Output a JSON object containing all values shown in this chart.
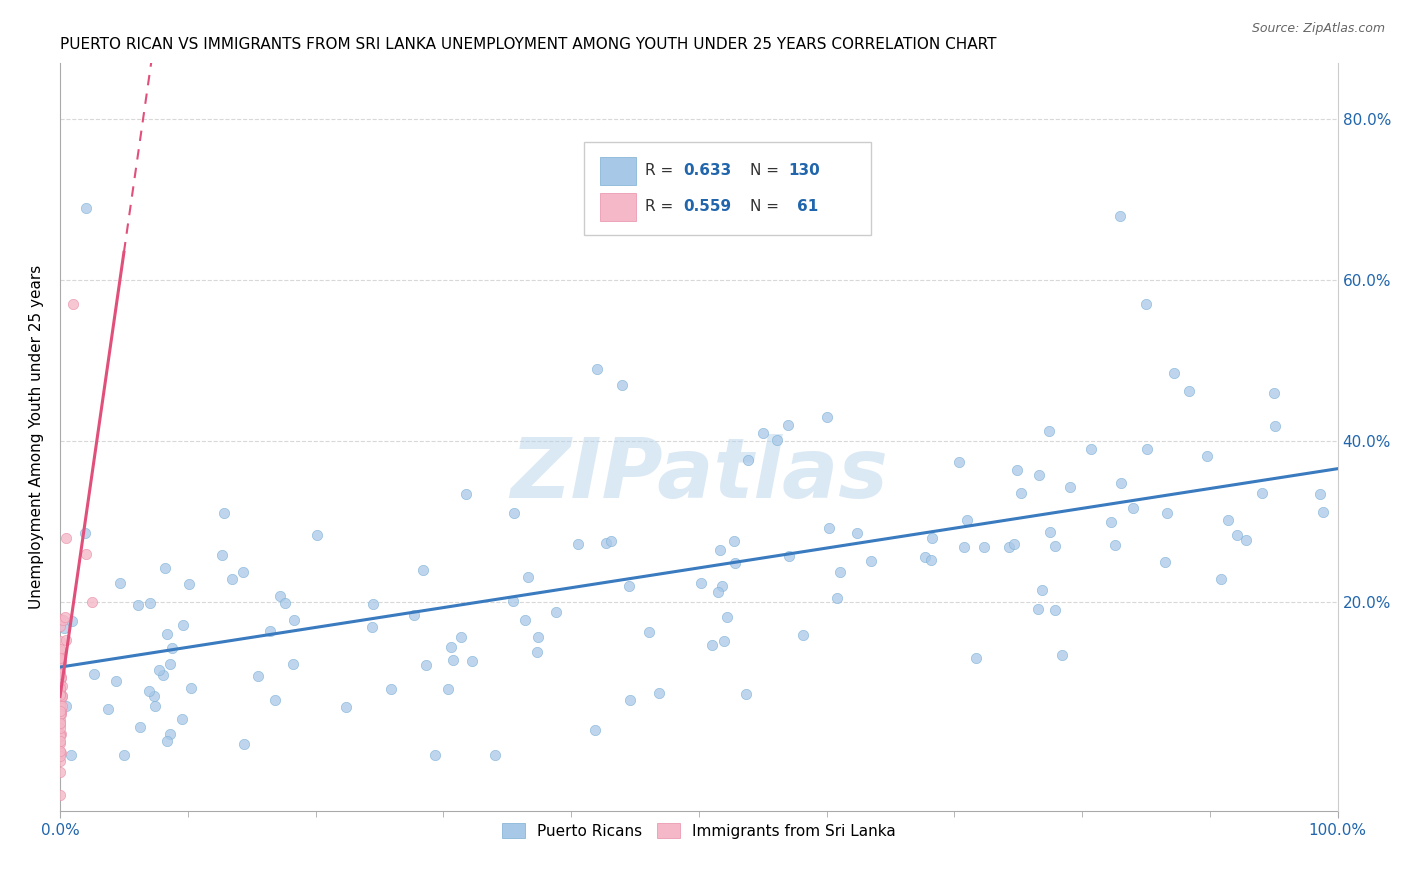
{
  "title": "PUERTO RICAN VS IMMIGRANTS FROM SRI LANKA UNEMPLOYMENT AMONG YOUTH UNDER 25 YEARS CORRELATION CHART",
  "source": "Source: ZipAtlas.com",
  "ylabel": "Unemployment Among Youth under 25 years",
  "watermark": "ZIPatlas",
  "blue_color": "#a8c8e8",
  "blue_edge": "#7aafd4",
  "pink_color": "#f4b8c8",
  "pink_edge": "#e890a8",
  "line_blue": "#3a7abf",
  "line_pink": "#e0507a",
  "n_color": "#2166ac",
  "xmin": 0.0,
  "xmax": 1.0,
  "ymin": -0.06,
  "ymax": 0.87,
  "blue_seed": 42,
  "pink_seed": 7,
  "blue_n": 130,
  "pink_n": 61,
  "blue_r": 0.633,
  "pink_r": 0.559,
  "bg_color": "#ffffff",
  "grid_color": "#d8d8d8"
}
